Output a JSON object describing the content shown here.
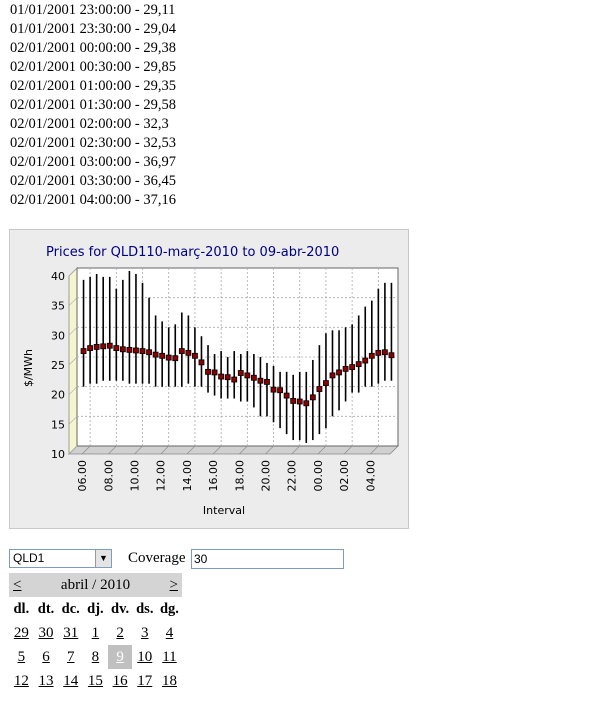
{
  "price_list": [
    "01/01/2001 23:00:00 - 29,11",
    "01/01/2001 23:30:00 - 29,04",
    "02/01/2001 00:00:00 - 29,38",
    "02/01/2001 00:30:00 - 29,85",
    "02/01/2001 01:00:00 - 29,35",
    "02/01/2001 01:30:00 - 29,58",
    "02/01/2001 02:00:00 - 32,3",
    "02/01/2001 02:30:00 - 32,53",
    "02/01/2001 03:00:00 - 36,97",
    "02/01/2001 03:30:00 - 36,45",
    "02/01/2001 04:00:00 - 37,16"
  ],
  "chart_data": {
    "type": "scatter",
    "title": "Prices for QLD110-març-2010 to 09-abr-2010",
    "xlabel": "Interval",
    "ylabel": "$/MWh",
    "ylim": [
      10,
      40
    ],
    "yticks": [
      10,
      15,
      20,
      25,
      30,
      35,
      40
    ],
    "xticks": [
      "06.00",
      "08.00",
      "10.00",
      "12.00",
      "14.00",
      "16.00",
      "18.00",
      "20.00",
      "22.00",
      "00.00",
      "02.00",
      "04.00"
    ],
    "grid": true,
    "x_interval_hours": 0.5,
    "x_start_hour": 5.0,
    "series": [
      {
        "mean": [
          26,
          26.5,
          26.7,
          26.8,
          26.9,
          26.5,
          26.3,
          26.2,
          26.1,
          26,
          25.8,
          25.4,
          25.2,
          24.9,
          24.8,
          26,
          25.7,
          25.2,
          24.1,
          22.5,
          22.4,
          21.7,
          21.6,
          21.2,
          22.3,
          21.9,
          21.5,
          21,
          20.8,
          19.5,
          19.4,
          18.5,
          17.6,
          17.5,
          17.2,
          18.2,
          19.6,
          20.6,
          21.9,
          22.4,
          23,
          23.3,
          23.8,
          24.4,
          25.2,
          25.7,
          25.8,
          25.3
        ],
        "low": [
          20,
          20.5,
          20.5,
          21,
          21,
          21,
          21,
          20.5,
          20.5,
          20.5,
          20.5,
          20,
          20,
          20,
          20,
          20,
          20.5,
          20,
          20,
          19,
          18.5,
          18,
          18,
          18,
          17.5,
          17.5,
          16.5,
          15,
          15,
          14,
          13,
          12,
          11,
          11,
          10.5,
          11,
          12,
          13,
          15,
          16,
          17.5,
          19,
          19,
          20,
          20,
          20.5,
          21,
          21
        ],
        "high": [
          38,
          38.5,
          39,
          38.5,
          38.5,
          36.5,
          38,
          39.5,
          39,
          37.5,
          35,
          32,
          31,
          30,
          30.5,
          32.5,
          32,
          30,
          28.5,
          27,
          25.5,
          26,
          25,
          26,
          25.5,
          26,
          25.5,
          25,
          24,
          23.5,
          22.5,
          22.5,
          22,
          22.5,
          22.5,
          24.5,
          27,
          29,
          29.5,
          29.5,
          30,
          30.5,
          32,
          33.5,
          34.5,
          36.5,
          37.5,
          37.5
        ]
      }
    ]
  },
  "controls": {
    "region_value": "QLD1",
    "coverage_label": "Coverage",
    "coverage_value": "30"
  },
  "calendar": {
    "prev": "<",
    "next": ">",
    "title": "abril / 2010",
    "weekdays": [
      "dl.",
      "dt.",
      "dc.",
      "dj.",
      "dv.",
      "ds.",
      "dg."
    ],
    "days": [
      "29",
      "30",
      "31",
      "1",
      "2",
      "3",
      "4",
      "5",
      "6",
      "7",
      "8",
      "9",
      "10",
      "11",
      "12",
      "13",
      "14",
      "15",
      "16",
      "17",
      "18"
    ],
    "selected": "9"
  },
  "colors": {
    "marker": "#8b0000",
    "plot_bg": "#ffffff",
    "floor": "#d0d0d0",
    "side_wall": "#f5f5d0",
    "title": "#000080",
    "selected_day_bg": "#c0c0c0"
  }
}
